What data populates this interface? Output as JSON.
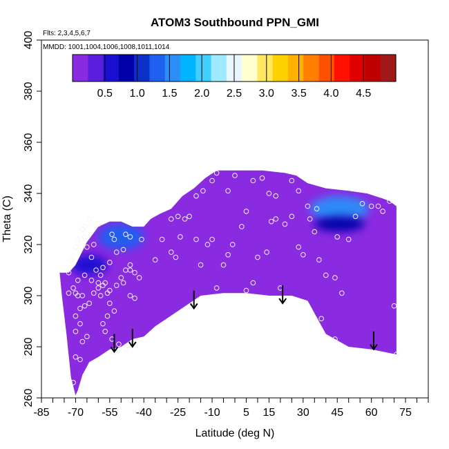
{
  "chart_data": {
    "type": "contour",
    "title": "ATOM3 Southbound PPN_GMI",
    "flights_note": "Flts: 2,3,4,5,6,7",
    "mmdd_note": "MMDD: 1001,1004,1006,1008,1011,1014",
    "xlabel": "Latitude (deg N)",
    "ylabel": "Theta (C)",
    "xlim": [
      -85,
      85
    ],
    "ylim": [
      260,
      400
    ],
    "x_tick_labels": [
      -85,
      -70,
      -55,
      -40,
      -25,
      -10,
      5,
      15,
      30,
      45,
      60,
      75
    ],
    "x_minor_ticks": [
      -85,
      -80,
      -75,
      -70,
      -65,
      -60,
      -55,
      -50,
      -45,
      -40,
      -35,
      -30,
      -25,
      -20,
      -15,
      -10,
      -5,
      0,
      5,
      10,
      15,
      20,
      25,
      30,
      35,
      40,
      45,
      50,
      55,
      60,
      65,
      70,
      75,
      80,
      85
    ],
    "y_ticks": [
      260,
      280,
      300,
      320,
      340,
      360,
      380,
      400
    ],
    "colorbar": {
      "range": [
        0,
        5
      ],
      "tick_labels": [
        "0.5",
        "1.0",
        "1.5",
        "2.0",
        "2.5",
        "3.0",
        "3.5",
        "4.0",
        "4.5"
      ],
      "tick_values": [
        0.5,
        1.0,
        1.5,
        2.0,
        2.5,
        3.0,
        3.5,
        4.0,
        4.5
      ],
      "colors": [
        "#8a2be2",
        "#5a1ee0",
        "#1a0fd0",
        "#0000a8",
        "#0a30c8",
        "#1e60f0",
        "#2b8ff8",
        "#00b4ff",
        "#40d0ff",
        "#a0e8ff",
        "#e8f6ff",
        "#ffffd0",
        "#ffe860",
        "#ffd000",
        "#ffb000",
        "#ff8000",
        "#ff5000",
        "#ff1000",
        "#e00000",
        "#c00000",
        "#a01818"
      ]
    },
    "field": {
      "background_value": 0.1,
      "top_boundary": [
        [
          -73,
          309
        ],
        [
          -70,
          312
        ],
        [
          -65,
          321
        ],
        [
          -60,
          327
        ],
        [
          -55,
          329
        ],
        [
          -50,
          329
        ],
        [
          -45,
          327
        ],
        [
          -40,
          327
        ],
        [
          -37,
          330
        ],
        [
          -33,
          332
        ],
        [
          -28,
          334
        ],
        [
          -23,
          339
        ],
        [
          -18,
          342
        ],
        [
          -13,
          346
        ],
        [
          -8,
          349
        ],
        [
          2,
          349
        ],
        [
          12,
          349
        ],
        [
          22,
          348
        ],
        [
          27,
          347
        ],
        [
          32,
          344
        ],
        [
          40,
          342
        ],
        [
          50,
          341
        ],
        [
          58,
          340
        ],
        [
          65,
          338
        ],
        [
          68,
          337
        ],
        [
          71,
          335
        ],
        [
          71,
          296
        ]
      ],
      "bottom_boundary": [
        [
          71,
          277
        ],
        [
          60,
          279
        ],
        [
          50,
          280
        ],
        [
          40,
          285
        ],
        [
          32,
          298
        ],
        [
          25,
          300
        ],
        [
          15,
          300
        ],
        [
          5,
          301
        ],
        [
          -5,
          301
        ],
        [
          -15,
          300
        ],
        [
          -20,
          297
        ],
        [
          -25,
          294
        ],
        [
          -35,
          288
        ],
        [
          -40,
          284
        ],
        [
          -45,
          283
        ],
        [
          -50,
          280
        ],
        [
          -55,
          279
        ],
        [
          -60,
          276
        ],
        [
          -64,
          274
        ],
        [
          -67,
          269
        ],
        [
          -69,
          263
        ],
        [
          -70,
          261
        ],
        [
          -72,
          268
        ],
        [
          -74,
          285
        ],
        [
          -76,
          300
        ],
        [
          -77,
          309
        ]
      ],
      "blobs": [
        {
          "x": -50,
          "y": 323,
          "rx": 10,
          "ry": 5,
          "value": 1.2
        },
        {
          "x": -64,
          "y": 312,
          "rx": 8,
          "ry": 4,
          "value": 0.7
        },
        {
          "x": 46,
          "y": 334,
          "rx": 13,
          "ry": 5,
          "value": 1.6
        },
        {
          "x": 46,
          "y": 328,
          "rx": 11,
          "ry": 3,
          "value": 0.8
        }
      ]
    },
    "sample_points": [
      [
        -71,
        266
      ],
      [
        -70,
        276
      ],
      [
        -68,
        275
      ],
      [
        -67,
        282
      ],
      [
        -68,
        289
      ],
      [
        -70,
        292
      ],
      [
        -68,
        295
      ],
      [
        -69,
        300
      ],
      [
        -66,
        296
      ],
      [
        -64,
        297
      ],
      [
        -62,
        301
      ],
      [
        -60,
        303
      ],
      [
        -58,
        304
      ],
      [
        -56,
        301
      ],
      [
        -55,
        297
      ],
      [
        -53,
        294
      ],
      [
        -67,
        300
      ],
      [
        -70,
        301
      ],
      [
        -73,
        309
      ],
      [
        -72,
        314
      ],
      [
        -70,
        319
      ],
      [
        -69,
        322
      ],
      [
        -67,
        326
      ],
      [
        -65,
        319
      ],
      [
        -63,
        315
      ],
      [
        -61,
        310
      ],
      [
        -59,
        308
      ],
      [
        -57,
        305
      ],
      [
        -55,
        302
      ],
      [
        -52,
        304
      ],
      [
        -50,
        307
      ],
      [
        -48,
        310
      ],
      [
        -46,
        312
      ],
      [
        -44,
        309
      ],
      [
        -42,
        307
      ],
      [
        -44,
        299
      ],
      [
        -46,
        300
      ],
      [
        -49,
        305
      ],
      [
        -46,
        310
      ],
      [
        -54,
        324
      ],
      [
        -53,
        322
      ],
      [
        -48,
        324
      ],
      [
        -46,
        323
      ],
      [
        -41,
        322
      ],
      [
        -35,
        314
      ],
      [
        -32,
        322
      ],
      [
        -28,
        317
      ],
      [
        -26,
        315
      ],
      [
        -24,
        323
      ],
      [
        -22,
        330
      ],
      [
        -20,
        331
      ],
      [
        -17,
        322
      ],
      [
        -15,
        312
      ],
      [
        -12,
        320
      ],
      [
        -10,
        322
      ],
      [
        -8,
        303
      ],
      [
        -5,
        312
      ],
      [
        -3,
        316
      ],
      [
        -1,
        320
      ],
      [
        3,
        327
      ],
      [
        5,
        302
      ],
      [
        8,
        305
      ],
      [
        10,
        315
      ],
      [
        14,
        317
      ],
      [
        16,
        329
      ],
      [
        18,
        330
      ],
      [
        20,
        303
      ],
      [
        22,
        328
      ],
      [
        25,
        331
      ],
      [
        28,
        319
      ],
      [
        30,
        316
      ],
      [
        33,
        330
      ],
      [
        35,
        325
      ],
      [
        37,
        314
      ],
      [
        40,
        308
      ],
      [
        44,
        307
      ],
      [
        45,
        323
      ],
      [
        47,
        301
      ],
      [
        50,
        322
      ],
      [
        53,
        331
      ],
      [
        56,
        336
      ],
      [
        60,
        335
      ],
      [
        63,
        335
      ],
      [
        65,
        333
      ],
      [
        68,
        337
      ],
      [
        70,
        296
      ],
      [
        71,
        277
      ],
      [
        38,
        291
      ],
      [
        44,
        283
      ],
      [
        -73,
        301
      ],
      [
        -71,
        303
      ],
      [
        -69,
        306
      ],
      [
        -66,
        308
      ],
      [
        -63,
        306
      ],
      [
        -58,
        311
      ],
      [
        -55,
        313
      ],
      [
        -52,
        317
      ],
      [
        -49,
        318
      ],
      [
        -53,
        278
      ],
      [
        -48,
        279
      ],
      [
        -57,
        286
      ],
      [
        -54,
        283
      ],
      [
        -51,
        281
      ],
      [
        -46,
        281
      ],
      [
        -58,
        289
      ],
      [
        -56,
        292
      ],
      [
        -60,
        305
      ],
      [
        -59,
        300
      ],
      [
        -62,
        320
      ],
      [
        -60,
        328
      ],
      [
        -66,
        323
      ],
      [
        -64,
        330
      ],
      [
        -66,
        327
      ],
      [
        12,
        346
      ],
      [
        18,
        339
      ],
      [
        8,
        345
      ],
      [
        0,
        347
      ],
      [
        -8,
        348
      ],
      [
        -14,
        341
      ],
      [
        -17,
        339
      ],
      [
        -25,
        331
      ],
      [
        -28,
        330
      ],
      [
        -10,
        345
      ],
      [
        -3,
        341
      ],
      [
        5,
        333
      ],
      [
        15,
        340
      ],
      [
        25,
        345
      ],
      [
        28,
        341
      ],
      [
        32,
        335
      ],
      [
        36,
        334
      ],
      [
        -70,
        286
      ],
      [
        -65,
        284
      ]
    ],
    "arrows": [
      {
        "x": -53,
        "y_top": 285,
        "y_bottom": 278
      },
      {
        "x": -45,
        "y_top": 287,
        "y_bottom": 280
      },
      {
        "x": -18,
        "y_top": 302,
        "y_bottom": 295
      },
      {
        "x": 21,
        "y_top": 304,
        "y_bottom": 297
      },
      {
        "x": 61,
        "y_top": 286,
        "y_bottom": 279
      }
    ]
  }
}
